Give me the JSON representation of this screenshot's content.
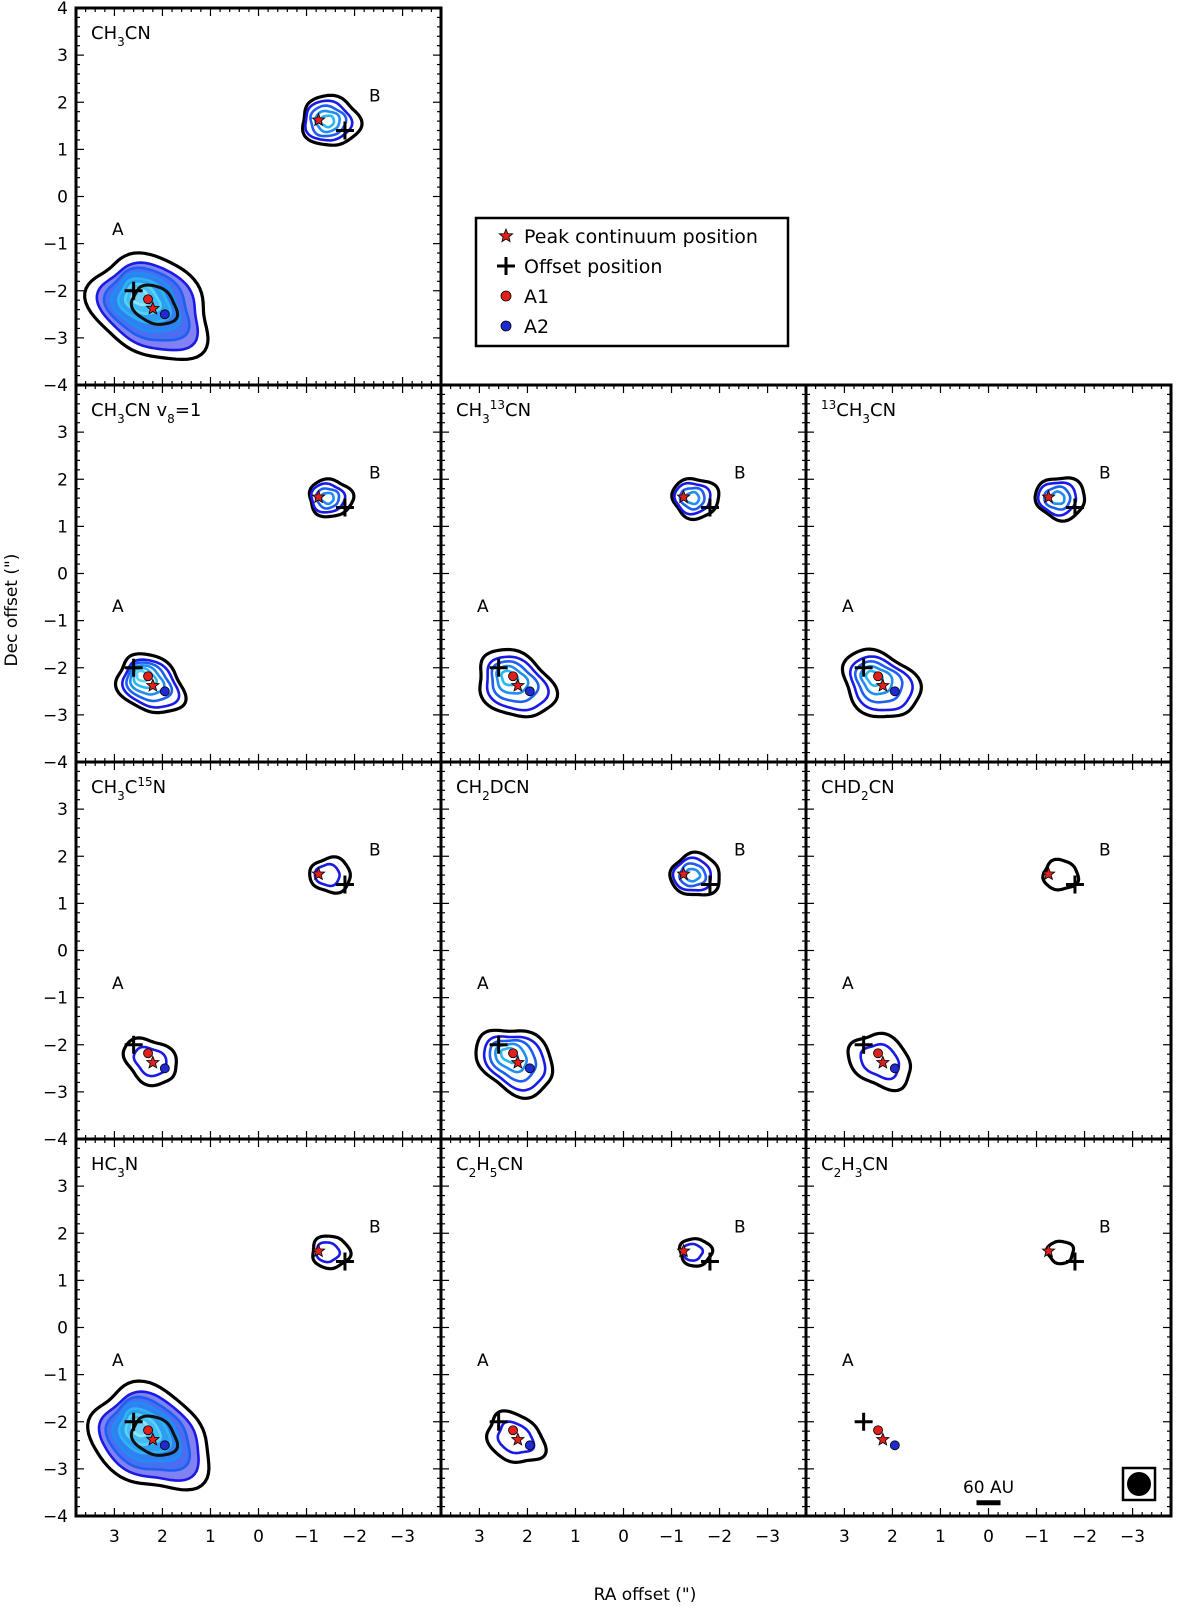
{
  "chart_data": {
    "type": "contour",
    "xlabel": "RA offset (\")",
    "ylabel": "Dec offset (\")",
    "xlim": [
      3.8,
      -3.8
    ],
    "ylim": [
      -4,
      4
    ],
    "x_ticks": [
      3,
      2,
      1,
      0,
      -1,
      -2,
      -3
    ],
    "y_ticks": [
      4,
      3,
      2,
      1,
      0,
      -1,
      -2,
      -3,
      -4
    ],
    "x_reversed": true,
    "grid": false,
    "source_labels": {
      "A": "A",
      "B": "B"
    },
    "markers": {
      "peak_continuum": [
        [
          2.2,
          -2.38
        ],
        [
          -1.25,
          1.62
        ]
      ],
      "offset_position": [
        [
          2.6,
          -2.0
        ],
        [
          -1.8,
          1.4
        ]
      ],
      "A1": [
        2.3,
        -2.18
      ],
      "A2": [
        1.95,
        -2.5
      ]
    },
    "legend": {
      "placement": "center",
      "entries": [
        {
          "label": "Peak continuum position",
          "marker": "star",
          "color": "#e0201b"
        },
        {
          "label": "Offset position",
          "marker": "plus",
          "color": "#000000"
        },
        {
          "label": "A1",
          "marker": "dot",
          "color": "#e0201b"
        },
        {
          "label": "A2",
          "marker": "dot",
          "color": "#1f2ad0"
        }
      ]
    },
    "scale_bar": {
      "label": "60 AU",
      "length_arcsec": 0.5
    },
    "contour_colors": [
      "#1a1ae6",
      "#1d5ff0",
      "#1f8ef3",
      "#2bb6f2",
      "#56d4f5",
      "#8fe6f8"
    ],
    "panels": [
      {
        "id": "ch3cn",
        "row": 0,
        "col": 0,
        "title": "CH3CN",
        "title_parts": [
          [
            "CH",
            ""
          ],
          [
            "3",
            "sub"
          ],
          [
            "CN",
            ""
          ]
        ],
        "levels": 6,
        "outer_scale": 1.25,
        "b_levels": 4,
        "b_scale": 1.0,
        "heavy": true,
        "x_ticks_labeled": false,
        "y_ticks_labeled": true
      },
      {
        "id": "ch3cn-v8",
        "row": 1,
        "col": 0,
        "title": "CH3CN v8=1",
        "title_parts": [
          [
            "CH",
            ""
          ],
          [
            "3",
            "sub"
          ],
          [
            "CN  v",
            ""
          ],
          [
            "8",
            "sub"
          ],
          [
            "=1",
            ""
          ]
        ],
        "levels": 5,
        "outer_scale": 0.7,
        "b_levels": 3,
        "b_scale": 0.75,
        "heavy": false,
        "x_ticks_labeled": false,
        "y_ticks_labeled": true
      },
      {
        "id": "ch3-13cn",
        "row": 1,
        "col": 1,
        "title": "CH3 13CN",
        "title_parts": [
          [
            "CH",
            ""
          ],
          [
            "3",
            "sub"
          ],
          [
            "13",
            "sup"
          ],
          [
            "CN",
            ""
          ]
        ],
        "levels": 4,
        "outer_scale": 0.8,
        "b_levels": 3,
        "b_scale": 0.8,
        "heavy": false,
        "x_ticks_labeled": false,
        "y_ticks_labeled": false
      },
      {
        "id": "13ch3cn",
        "row": 1,
        "col": 2,
        "title": "13CH3CN",
        "title_parts": [
          [
            "13",
            "sup"
          ],
          [
            "CH",
            ""
          ],
          [
            "3",
            "sub"
          ],
          [
            "CN",
            ""
          ]
        ],
        "levels": 4,
        "outer_scale": 0.8,
        "b_levels": 3,
        "b_scale": 0.85,
        "heavy": false,
        "x_ticks_labeled": false,
        "y_ticks_labeled": false
      },
      {
        "id": "ch3c15n",
        "row": 2,
        "col": 0,
        "title": "CH3C15N",
        "title_parts": [
          [
            "CH",
            ""
          ],
          [
            "3",
            "sub"
          ],
          [
            "C",
            ""
          ],
          [
            "15",
            "sup"
          ],
          [
            "N",
            ""
          ]
        ],
        "levels": 1,
        "outer_scale": 0.55,
        "b_levels": 1,
        "b_scale": 0.7,
        "heavy": false,
        "x_ticks_labeled": false,
        "y_ticks_labeled": true
      },
      {
        "id": "ch2dcn",
        "row": 2,
        "col": 1,
        "title": "CH2DCN",
        "title_parts": [
          [
            "CH",
            ""
          ],
          [
            "2",
            "sub"
          ],
          [
            "DCN",
            ""
          ]
        ],
        "levels": 4,
        "outer_scale": 0.8,
        "b_levels": 3,
        "b_scale": 0.85,
        "heavy": false,
        "x_ticks_labeled": false,
        "y_ticks_labeled": false
      },
      {
        "id": "chd2cn",
        "row": 2,
        "col": 2,
        "title": "CHD2CN",
        "title_parts": [
          [
            "CHD",
            ""
          ],
          [
            "2",
            "sub"
          ],
          [
            "CN",
            ""
          ]
        ],
        "levels": 1,
        "outer_scale": 0.65,
        "b_levels": 0,
        "b_scale": 0.6,
        "heavy": false,
        "x_ticks_labeled": false,
        "y_ticks_labeled": false
      },
      {
        "id": "hc3n",
        "row": 3,
        "col": 0,
        "title": "HC3N",
        "title_parts": [
          [
            "HC",
            ""
          ],
          [
            "3",
            "sub"
          ],
          [
            "N",
            ""
          ]
        ],
        "levels": 6,
        "outer_scale": 1.25,
        "b_levels": 1,
        "b_scale": 0.65,
        "heavy": true,
        "x_ticks_labeled": true,
        "y_ticks_labeled": true
      },
      {
        "id": "c2h5cn",
        "row": 3,
        "col": 1,
        "title": "C2H5CN",
        "title_parts": [
          [
            "C",
            ""
          ],
          [
            "2",
            "sub"
          ],
          [
            "H",
            ""
          ],
          [
            "5",
            "sub"
          ],
          [
            "CN",
            ""
          ]
        ],
        "levels": 1,
        "outer_scale": 0.6,
        "b_levels": 1,
        "b_scale": 0.55,
        "heavy": false,
        "x_ticks_labeled": true,
        "y_ticks_labeled": false
      },
      {
        "id": "c2h3cn",
        "row": 3,
        "col": 2,
        "title": "C2H3CN",
        "title_parts": [
          [
            "C",
            ""
          ],
          [
            "2",
            "sub"
          ],
          [
            "H",
            ""
          ],
          [
            "3",
            "sub"
          ],
          [
            "CN",
            ""
          ]
        ],
        "levels": 0,
        "outer_scale": 0.0,
        "b_levels": 0,
        "b_scale": 0.45,
        "heavy": false,
        "x_ticks_labeled": true,
        "y_ticks_labeled": false
      }
    ]
  }
}
